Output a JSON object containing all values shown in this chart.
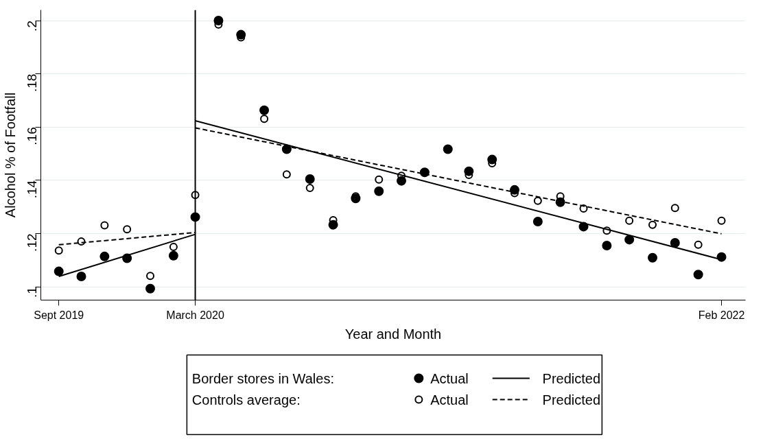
{
  "chart_data": {
    "type": "scatter",
    "xlabel": "Year and Month",
    "ylabel": "Alcohol % of Footfall",
    "x": [
      "2019-09",
      "2019-10",
      "2019-11",
      "2019-12",
      "2020-01",
      "2020-02",
      "2020-03",
      "2020-04",
      "2020-05",
      "2020-06",
      "2020-07",
      "2020-08",
      "2020-09",
      "2020-10",
      "2020-11",
      "2020-12",
      "2021-01",
      "2021-02",
      "2021-03",
      "2021-04",
      "2021-05",
      "2021-06",
      "2021-07",
      "2021-08",
      "2021-09",
      "2021-10",
      "2021-11",
      "2021-12",
      "2022-01",
      "2022-02"
    ],
    "series": [
      {
        "name": "Actual",
        "color": "#000000",
        "marker": "circle",
        "values": [
          0.1058,
          0.1039,
          0.1114,
          0.1107,
          0.0993,
          0.1117,
          0.1262,
          0.2,
          0.1947,
          0.1663,
          0.1517,
          0.1405,
          0.1233,
          0.1332,
          0.1359,
          0.1398,
          0.143,
          0.1517,
          0.1434,
          0.1478,
          0.1364,
          0.1245,
          0.1318,
          0.1226,
          0.1155,
          0.1177,
          0.1109,
          0.1165,
          0.1046,
          0.1112
        ]
      },
      {
        "name": "Predicted",
        "type": "line",
        "color": "#000000",
        "line_style": "solid",
        "x": [
          "2019-09",
          "2020-03"
        ],
        "values": [
          0.1039,
          0.1197
        ]
      },
      {
        "type": "line",
        "color": "#000000",
        "line_style": "solid",
        "x": [
          "2020-03",
          "2022-02"
        ],
        "values": [
          0.1624,
          0.1102
        ]
      },
      {
        "name": "Actual",
        "color": "#000000",
        "marker": "circle_open",
        "values": [
          0.1136,
          0.117,
          0.1231,
          0.1216,
          0.1041,
          0.115,
          0.1345,
          0.1985,
          0.1937,
          0.1631,
          0.1422,
          0.1371,
          0.125,
          0.134,
          0.1403,
          0.1417,
          null,
          null,
          0.142,
          0.1464,
          0.1352,
          0.1323,
          0.134,
          0.1294,
          0.1211,
          0.1248,
          0.1233,
          0.1296,
          0.1158,
          0.1248
        ]
      },
      {
        "name": "Predicted",
        "type": "line",
        "color": "#000000",
        "line_style": "dashed",
        "x": [
          "2019-09",
          "2020-03"
        ],
        "values": [
          0.1158,
          0.1204
        ]
      },
      {
        "type": "line",
        "color": "#000000",
        "line_style": "dashed",
        "x": [
          "2020-03",
          "2022-02"
        ],
        "values": [
          0.1597,
          0.1199
        ]
      }
    ],
    "annotations": [
      "Border stores in Wales:",
      "Controls average:"
    ],
    "ref_lines": [
      {
        "axis": "x",
        "value": "2020-03",
        "color": "#000000"
      }
    ],
    "xlim": [
      "2019-08-08",
      "2022-03-05"
    ],
    "xticks": [
      {
        "value": "2019-09",
        "label": "Sept 2019"
      },
      {
        "value": "2020-03",
        "label": "March 2020"
      },
      {
        "value": "2022-02",
        "label": "Feb 2022"
      }
    ],
    "ylim": [
      0.095,
      0.204
    ],
    "yticks": [
      {
        "value": 0.1,
        "label": ".1"
      },
      {
        "value": 0.12,
        "label": ".12"
      },
      {
        "value": 0.14,
        "label": ".14"
      },
      {
        "value": 0.16,
        "label": ".16"
      },
      {
        "value": 0.18,
        "label": ".18"
      },
      {
        "value": 0.2,
        "label": ".2"
      }
    ],
    "grid": "y",
    "legend": "bottom"
  }
}
